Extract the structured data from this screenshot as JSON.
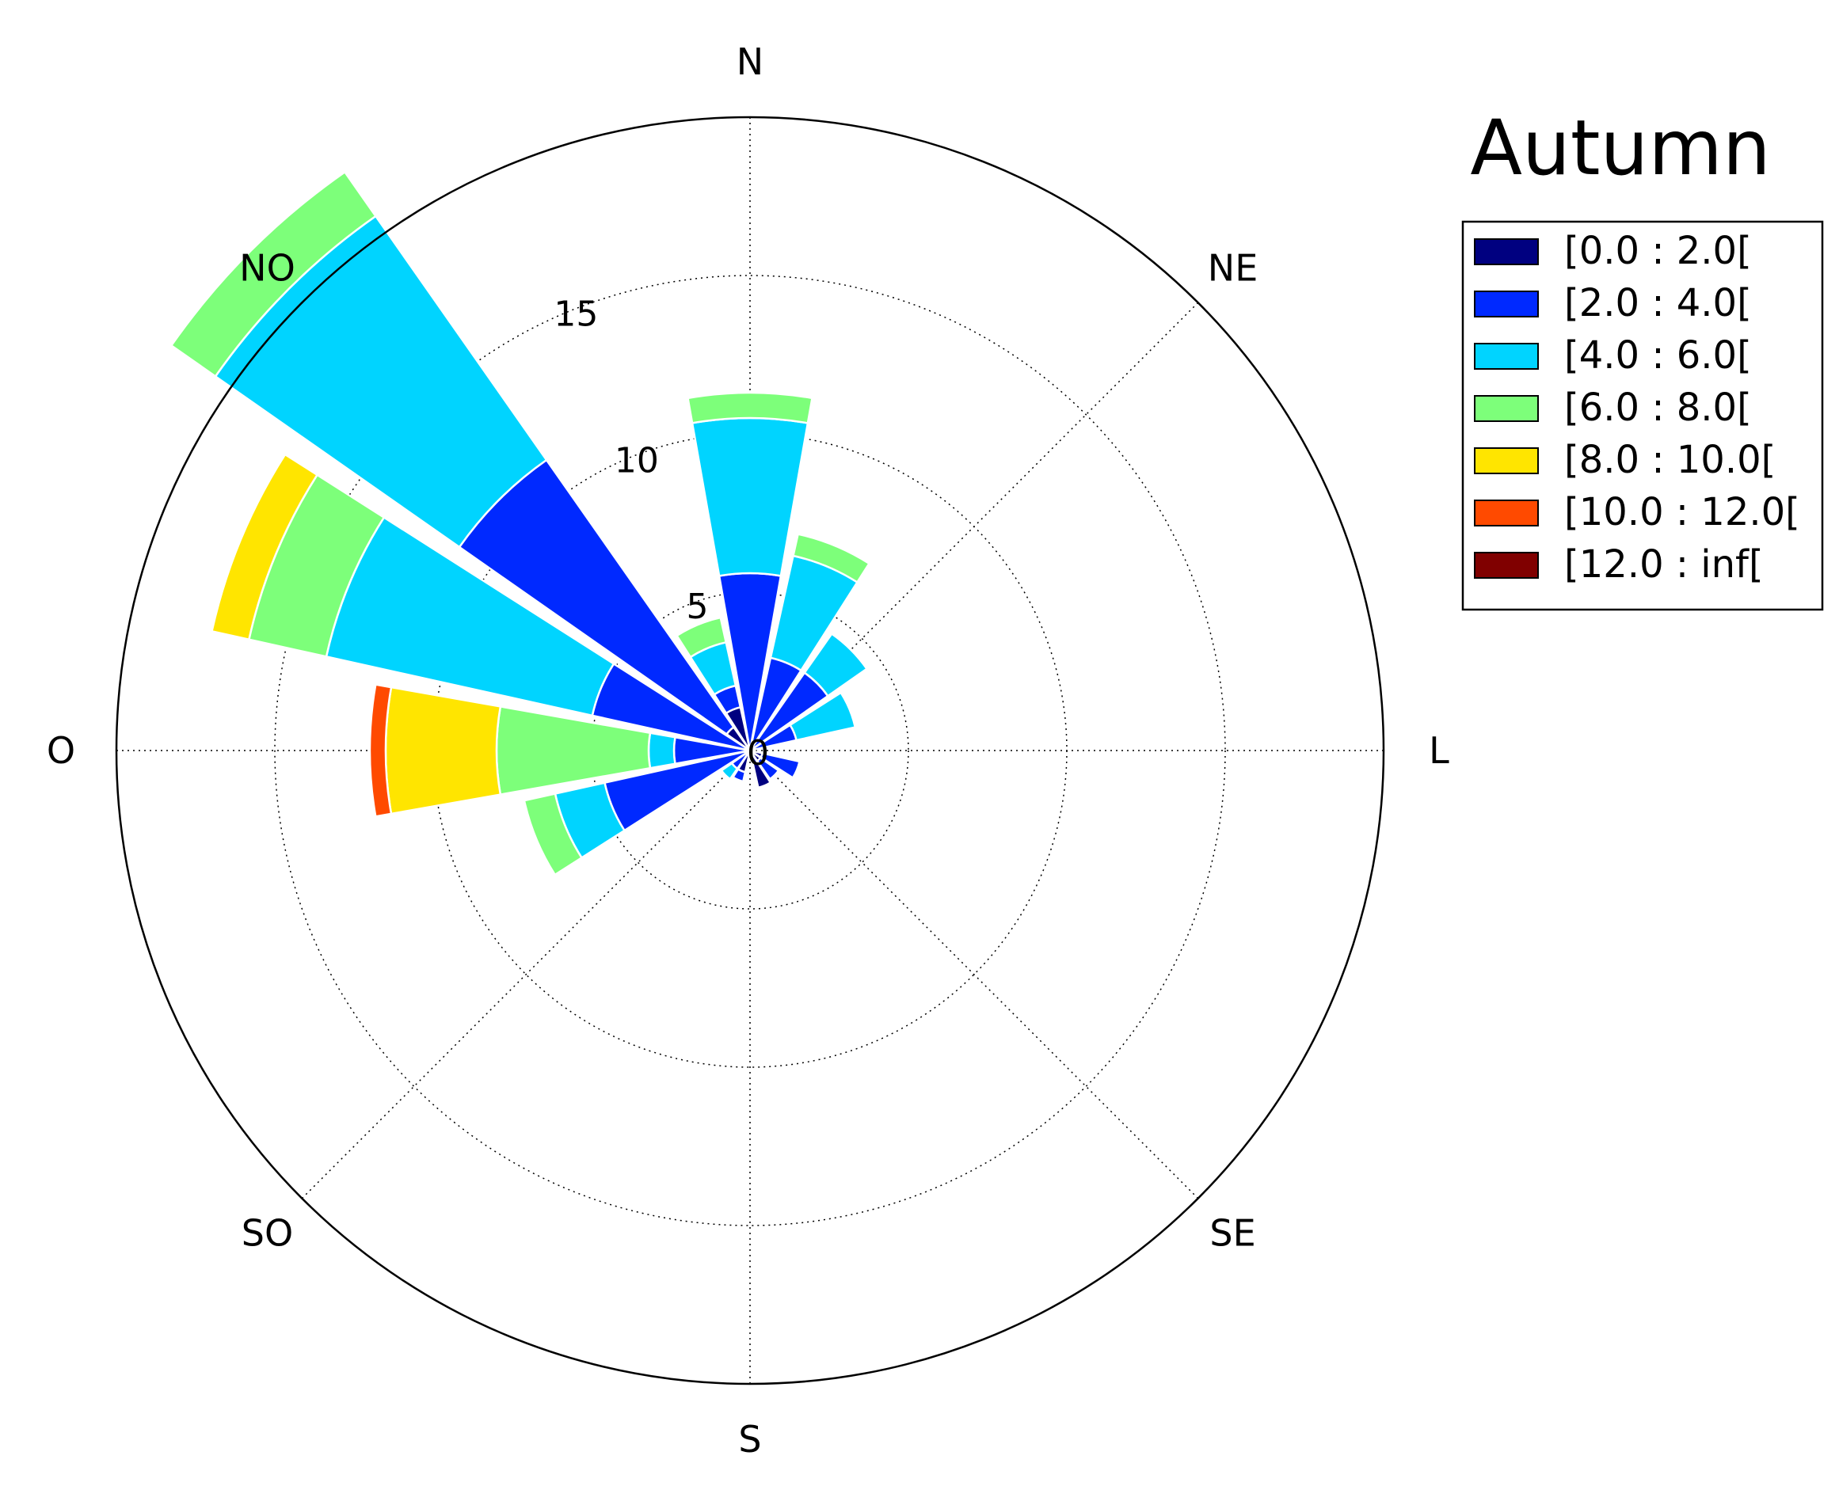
{
  "chart_data": {
    "type": "windrose",
    "title": "Autumn",
    "direction_labels": [
      "N",
      "NE",
      "L",
      "SE",
      "S",
      "SO",
      "O",
      "NO"
    ],
    "radial_ticks": [
      0,
      5,
      10,
      15
    ],
    "rmax": 20,
    "legend": {
      "position": "top-right",
      "entries": [
        {
          "label": "[0.0 : 2.0[",
          "color": "#000080"
        },
        {
          "label": "[2.0 : 4.0[",
          "color": "#0029ff"
        },
        {
          "label": "[4.0 : 6.0[",
          "color": "#00d4ff"
        },
        {
          "label": "[6.0 : 8.0[",
          "color": "#7dff7a"
        },
        {
          "label": "[8.0 : 10.0[",
          "color": "#ffe500"
        },
        {
          "label": "[10.0 : 12.0[",
          "color": "#ff4a00"
        },
        {
          "label": "[12.0 : inf[",
          "color": "#800000"
        }
      ]
    },
    "sector_width_deg": 20,
    "sectors": [
      {
        "direction_deg": 0,
        "cumulative": [
          0.0,
          5.6,
          10.5,
          11.3
        ]
      },
      {
        "direction_deg": 22.5,
        "cumulative": [
          0.0,
          3.0,
          6.3,
          7.0
        ]
      },
      {
        "direction_deg": 45,
        "cumulative": [
          0.0,
          3.0,
          4.5
        ]
      },
      {
        "direction_deg": 67.5,
        "cumulative": [
          0.0,
          1.5,
          3.4
        ]
      },
      {
        "direction_deg": 90,
        "cumulative": [
          0.0,
          0.1
        ]
      },
      {
        "direction_deg": 112.5,
        "cumulative": [
          0.4,
          1.6
        ]
      },
      {
        "direction_deg": 135,
        "cumulative": [
          0.4,
          1.1
        ]
      },
      {
        "direction_deg": 157.5,
        "cumulative": [
          1.2
        ]
      },
      {
        "direction_deg": 180,
        "cumulative": [
          0.0
        ]
      },
      {
        "direction_deg": 202.5,
        "cumulative": [
          0.7,
          1.0
        ]
      },
      {
        "direction_deg": 225,
        "cumulative": [
          0.1,
          0.7,
          1.1
        ]
      },
      {
        "direction_deg": 247.5,
        "cumulative": [
          0.0,
          4.7,
          6.3,
          7.3
        ]
      },
      {
        "direction_deg": 270,
        "cumulative": [
          0.0,
          2.4,
          3.2,
          8.0,
          11.5,
          12.0
        ]
      },
      {
        "direction_deg": 292.5,
        "cumulative": [
          0.0,
          5.1,
          13.7,
          16.2,
          17.4
        ]
      },
      {
        "direction_deg": 315,
        "cumulative": [
          0.9,
          11.2,
          20.6,
          22.3
        ]
      },
      {
        "direction_deg": 337.5,
        "cumulative": [
          1.4,
          2.1,
          3.5,
          4.3
        ]
      }
    ]
  }
}
